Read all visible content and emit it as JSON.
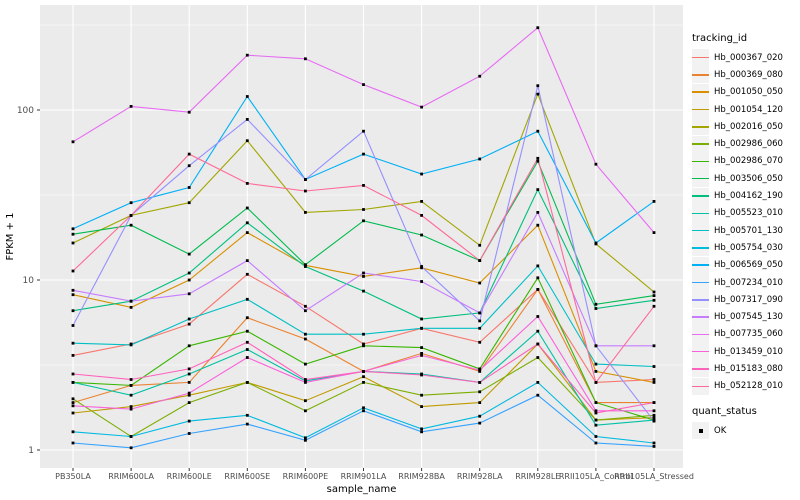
{
  "figure": {
    "panel_background": "#EBEBEB",
    "gridline_color": "#FFFFFF",
    "tick_label_color": "#4D4D4D",
    "axis_title_color": "#000000",
    "marker_color": "#000000",
    "legend_key_background": "#F2F2F2"
  },
  "legend": {
    "tracking_title": "tracking_id",
    "quant_title": "quant_status",
    "quant_items": [
      {
        "label": "OK",
        "marker": "black-square"
      }
    ]
  },
  "chart_data": {
    "type": "line",
    "title": "",
    "xlabel": "sample_name",
    "ylabel": "FPKM + 1",
    "y_scale": "log10",
    "y_tick_values": [
      1,
      10,
      100
    ],
    "y_tick_labels": [
      "1",
      "10",
      "100"
    ],
    "y_minor_values": [
      3.162,
      31.62,
      316.2
    ],
    "ylim": [
      0.79,
      410
    ],
    "grid": "major-white-on-gray",
    "legend_position": "right",
    "marker": "filled-black-square",
    "categories": [
      "PB350LA",
      "RRIM600LA",
      "RRIM600LE",
      "RRIM600SE",
      "RRIM600PE",
      "RRIM901LA",
      "RRIM928BA",
      "RRIM928LA",
      "RRIM928LE",
      "RRII105LA_Control",
      "RRII105LA_Stressed"
    ],
    "series": [
      {
        "name": "Hb_000367_020",
        "color": "#F8766D",
        "values": [
          3.6,
          4.2,
          5.5,
          10.8,
          7.0,
          4.2,
          5.2,
          4.3,
          8.8,
          2.5,
          2.6
        ]
      },
      {
        "name": "Hb_000369_080",
        "color": "#EA8331",
        "values": [
          1.9,
          2.4,
          2.5,
          6.0,
          4.5,
          2.9,
          3.7,
          2.9,
          8.8,
          1.9,
          1.9
        ]
      },
      {
        "name": "Hb_001050_050",
        "color": "#D89000",
        "values": [
          8.2,
          6.9,
          10.0,
          19.0,
          12.2,
          10.5,
          11.8,
          9.6,
          21.0,
          2.9,
          2.5
        ]
      },
      {
        "name": "Hb_001054_120",
        "color": "#C09B00",
        "values": [
          1.65,
          1.8,
          2.1,
          2.5,
          1.95,
          2.7,
          1.8,
          1.9,
          4.2,
          1.5,
          1.55
        ]
      },
      {
        "name": "Hb_002016_050",
        "color": "#A3A500",
        "values": [
          16.5,
          24.0,
          28.5,
          66.0,
          25.0,
          26.0,
          29.0,
          16.0,
          124.0,
          16.3,
          8.5
        ]
      },
      {
        "name": "Hb_002986_060",
        "color": "#7CAE00",
        "values": [
          2.0,
          1.2,
          1.9,
          2.5,
          1.7,
          2.5,
          2.1,
          2.2,
          3.5,
          1.5,
          1.6
        ]
      },
      {
        "name": "Hb_002986_070",
        "color": "#39B600",
        "values": [
          2.5,
          2.4,
          4.1,
          5.0,
          3.2,
          4.1,
          4.0,
          3.0,
          10.3,
          1.9,
          1.5
        ]
      },
      {
        "name": "Hb_003506_050",
        "color": "#00BB4E",
        "values": [
          18.6,
          21.0,
          14.2,
          26.5,
          12.3,
          22.3,
          18.4,
          13.0,
          50.0,
          7.2,
          8.1
        ]
      },
      {
        "name": "Hb_004162_190",
        "color": "#00BF7D",
        "values": [
          6.6,
          7.5,
          11.0,
          21.7,
          12.0,
          8.6,
          5.9,
          6.4,
          34.0,
          6.8,
          7.6
        ]
      },
      {
        "name": "Hb_005523_010",
        "color": "#00C1A3",
        "values": [
          2.5,
          2.1,
          2.8,
          3.9,
          2.55,
          2.9,
          2.8,
          2.5,
          5.0,
          1.4,
          1.5
        ]
      },
      {
        "name": "Hb_005701_130",
        "color": "#00BFC4",
        "values": [
          4.25,
          4.15,
          5.9,
          7.7,
          4.8,
          4.8,
          5.2,
          5.2,
          12.1,
          3.2,
          3.1
        ]
      },
      {
        "name": "Hb_005754_030",
        "color": "#00BAE0",
        "values": [
          1.28,
          1.2,
          1.48,
          1.6,
          1.18,
          1.77,
          1.33,
          1.58,
          2.5,
          1.2,
          1.1
        ]
      },
      {
        "name": "Hb_006569_050",
        "color": "#00B0F6",
        "values": [
          20.0,
          28.5,
          35.0,
          120.0,
          39.0,
          55.0,
          42.0,
          51.5,
          75.0,
          16.5,
          29.0
        ]
      },
      {
        "name": "Hb_007234_010",
        "color": "#35A2FF",
        "values": [
          1.1,
          1.03,
          1.25,
          1.42,
          1.14,
          1.7,
          1.28,
          1.44,
          2.1,
          1.1,
          1.05
        ]
      },
      {
        "name": "Hb_007317_090",
        "color": "#9590FF",
        "values": [
          5.4,
          24.0,
          47.0,
          88.0,
          39.0,
          75.0,
          12.0,
          5.75,
          139.0,
          4.1,
          1.48
        ]
      },
      {
        "name": "Hb_007545_130",
        "color": "#C77CFF",
        "values": [
          8.7,
          7.5,
          8.3,
          13.0,
          6.6,
          11.0,
          9.8,
          6.4,
          25.0,
          4.1,
          4.1
        ]
      },
      {
        "name": "Hb_007735_060",
        "color": "#E76BF3",
        "values": [
          65.0,
          105.0,
          97.0,
          210.0,
          200.0,
          141.0,
          104.0,
          158.0,
          305.0,
          48.0,
          19.0
        ]
      },
      {
        "name": "Hb_013459_010",
        "color": "#FA62DB",
        "values": [
          1.82,
          1.74,
          2.16,
          3.5,
          2.5,
          2.9,
          3.6,
          2.95,
          6.1,
          1.7,
          1.7
        ]
      },
      {
        "name": "Hb_015183_080",
        "color": "#FF62BC",
        "values": [
          2.8,
          2.6,
          3.0,
          4.3,
          2.6,
          2.9,
          2.76,
          2.5,
          4.2,
          1.65,
          1.9
        ]
      },
      {
        "name": "Hb_052128_010",
        "color": "#FF6A98",
        "values": [
          11.3,
          24.0,
          55.0,
          37.0,
          33.4,
          36.0,
          24.0,
          13.0,
          52.0,
          2.5,
          7.0
        ]
      }
    ]
  }
}
